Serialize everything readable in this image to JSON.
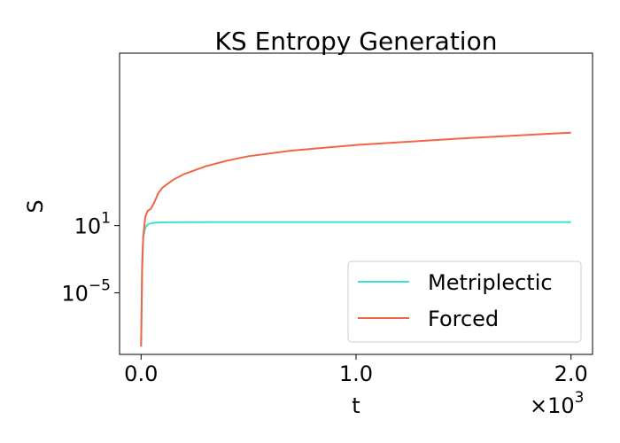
{
  "chart_data": {
    "type": "line",
    "title": "KS Entropy Generation",
    "xlabel": "t",
    "ylabel": "S",
    "x_multiplier_label": "×10",
    "x_multiplier_exp": "3",
    "xlim": [
      -100,
      2100
    ],
    "ylim_log10": [
      -10.5,
      16.4
    ],
    "yscale": "log",
    "x_ticks": [
      {
        "value": 0,
        "label": "0.0"
      },
      {
        "value": 1000,
        "label": "1.0"
      },
      {
        "value": 2000,
        "label": "2.0"
      }
    ],
    "y_ticks": [
      {
        "log10": 1,
        "base": "10",
        "exp": "1"
      },
      {
        "log10": -5,
        "base": "10",
        "exp": "−5"
      }
    ],
    "grid": false,
    "legend_position": "lower-right",
    "series": [
      {
        "name": "Metriplectic",
        "color": "#40e0d0",
        "points": [
          [
            0,
            -9.8
          ],
          [
            5,
            -2.0
          ],
          [
            10,
            0.0
          ],
          [
            20,
            0.8
          ],
          [
            30,
            1.1
          ],
          [
            50,
            1.23
          ],
          [
            80,
            1.28
          ],
          [
            120,
            1.3
          ],
          [
            200,
            1.31
          ],
          [
            400,
            1.32
          ],
          [
            1000,
            1.32
          ],
          [
            2000,
            1.32
          ]
        ]
      },
      {
        "name": "Forced",
        "color": "#f26446",
        "points": [
          [
            0,
            -9.8
          ],
          [
            5,
            -3.0
          ],
          [
            10,
            0.0
          ],
          [
            20,
            1.8
          ],
          [
            30,
            2.3
          ],
          [
            45,
            2.5
          ],
          [
            60,
            3.0
          ],
          [
            80,
            3.9
          ],
          [
            100,
            4.4
          ],
          [
            150,
            5.1
          ],
          [
            200,
            5.6
          ],
          [
            300,
            6.3
          ],
          [
            400,
            6.8
          ],
          [
            500,
            7.2
          ],
          [
            700,
            7.7
          ],
          [
            1000,
            8.2
          ],
          [
            1500,
            8.8
          ],
          [
            2000,
            9.3
          ]
        ]
      }
    ]
  }
}
